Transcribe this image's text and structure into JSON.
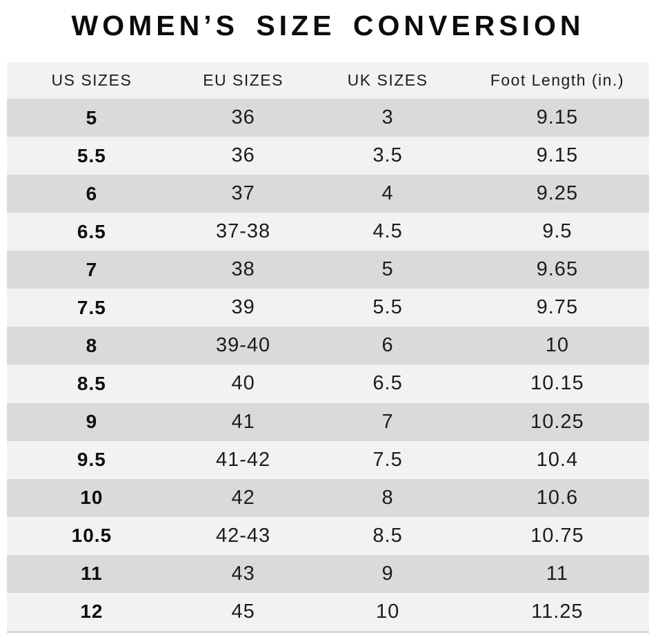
{
  "title": "WOMEN’S SIZE CONVERSION",
  "colors": {
    "background": "#ffffff",
    "row_dark": "#d9dadc",
    "row_light": "#f2f2f2",
    "header_bg": "#f2f2f2",
    "text": "#1c1c1e",
    "title": "#0c0c0c"
  },
  "chart_data": {
    "type": "table",
    "title": "WOMEN’S SIZE CONVERSION",
    "columns": [
      "US SIZES",
      "EU SIZES",
      "UK SIZES",
      "Foot Length (in.)"
    ],
    "rows": [
      [
        "5",
        "36",
        "3",
        "9.15"
      ],
      [
        "5.5",
        "36",
        "3.5",
        "9.15"
      ],
      [
        "6",
        "37",
        "4",
        "9.25"
      ],
      [
        "6.5",
        "37-38",
        "4.5",
        "9.5"
      ],
      [
        "7",
        "38",
        "5",
        "9.65"
      ],
      [
        "7.5",
        "39",
        "5.5",
        "9.75"
      ],
      [
        "8",
        "39-40",
        "6",
        "10"
      ],
      [
        "8.5",
        "40",
        "6.5",
        "10.15"
      ],
      [
        "9",
        "41",
        "7",
        "10.25"
      ],
      [
        "9.5",
        "41-42",
        "7.5",
        "10.4"
      ],
      [
        "10",
        "42",
        "8",
        "10.6"
      ],
      [
        "10.5",
        "42-43",
        "8.5",
        "10.75"
      ],
      [
        "11",
        "43",
        "9",
        "11"
      ],
      [
        "12",
        "45",
        "10",
        "11.25"
      ]
    ],
    "layout": {
      "striping": "alternating rows, dark then light",
      "first_column_bold": true,
      "column_width_pct": [
        26.4,
        20.8,
        24.2,
        28.6
      ]
    }
  }
}
